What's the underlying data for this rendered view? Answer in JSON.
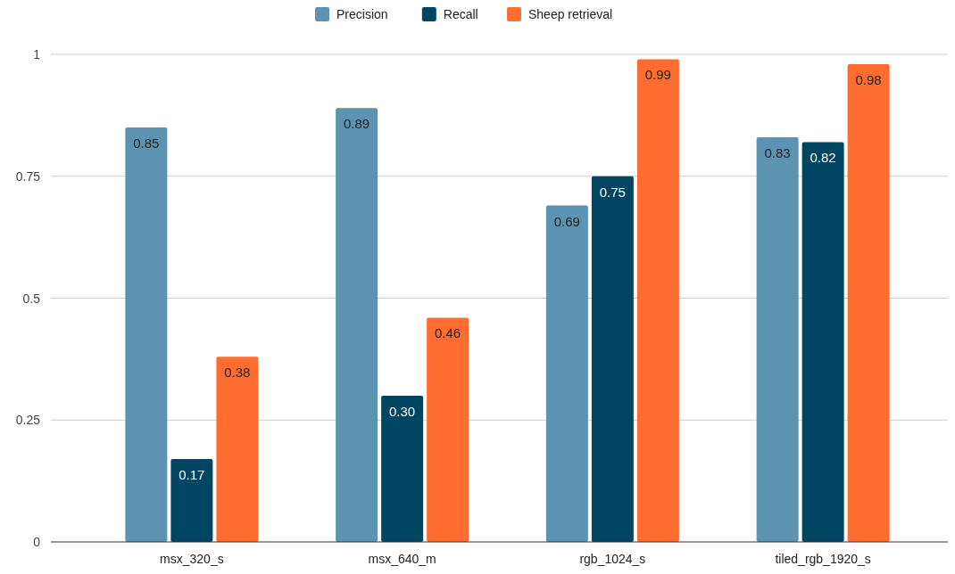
{
  "chart_data": {
    "type": "bar",
    "categories": [
      "msx_320_s",
      "msx_640_m",
      "rgb_1024_s",
      "tiled_rgb_1920_s"
    ],
    "series": [
      {
        "name": "Precision",
        "color": "#5b93b0",
        "values": [
          0.85,
          0.89,
          0.69,
          0.83
        ],
        "value_labels": [
          "0.85",
          "0.89",
          "0.69",
          "0.83"
        ]
      },
      {
        "name": "Recall",
        "color": "#004561",
        "values": [
          0.17,
          0.3,
          0.75,
          0.82
        ],
        "value_labels": [
          "0.17",
          "0.30",
          "0.75",
          "0.82"
        ]
      },
      {
        "name": "Sheep retrieval",
        "color": "#ff6d31",
        "values": [
          0.38,
          0.46,
          0.99,
          0.98
        ],
        "value_labels": [
          "0.38",
          "0.46",
          "0.99",
          "0.98"
        ]
      }
    ],
    "ylim": [
      0,
      1
    ],
    "yticks": [
      0,
      0.25,
      0.5,
      0.75,
      1
    ],
    "grid": "y",
    "legend": "top"
  }
}
